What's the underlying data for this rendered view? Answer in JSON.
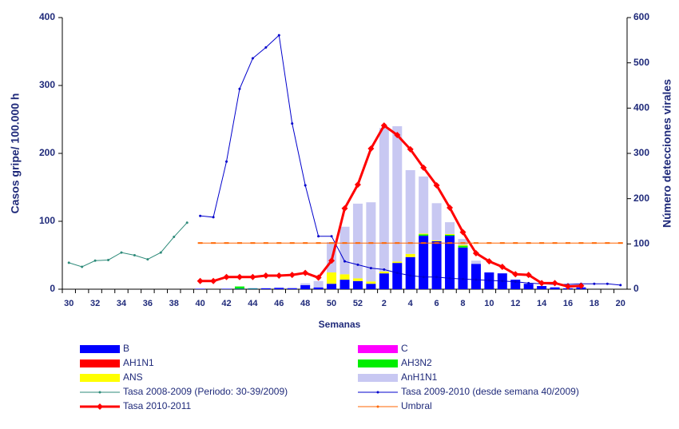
{
  "chart_data": {
    "type": "bar",
    "stacked": true,
    "x_label": "Semanas",
    "y_label": "Casos gripe/ 100.000 h",
    "y2_label": "Número detecciones virales",
    "categories": [
      "30",
      null,
      "32",
      null,
      "34",
      null,
      "36",
      null,
      "38",
      null,
      "40",
      null,
      "42",
      null,
      "44",
      null,
      "46",
      null,
      "48",
      null,
      "50",
      null,
      "52",
      null,
      "2",
      null,
      "4",
      null,
      "6",
      null,
      "8",
      null,
      "10",
      null,
      "12",
      null,
      "14",
      null,
      "16",
      null,
      "18",
      null,
      "20"
    ],
    "ylim": [
      0,
      400
    ],
    "yticks": [
      0,
      100,
      200,
      300,
      400
    ],
    "y2lim": [
      0,
      600
    ],
    "y2ticks": [
      0,
      100,
      200,
      300,
      400,
      500,
      600
    ],
    "series": [
      {
        "name": "B",
        "type": "bar",
        "axis": "y2",
        "color": "#0000ff",
        "values": [
          null,
          null,
          null,
          null,
          null,
          null,
          null,
          null,
          null,
          null,
          1,
          0,
          1,
          1,
          1,
          2,
          3,
          2,
          9,
          4,
          12,
          21,
          18,
          12,
          35,
          58,
          71,
          118,
          106,
          118,
          92,
          56,
          37,
          35,
          21,
          12,
          7,
          4,
          2,
          4,
          0,
          0,
          0
        ]
      },
      {
        "name": "C",
        "type": "bar",
        "axis": "y2",
        "color": "#ff00ff",
        "values": [
          null,
          null,
          null,
          null,
          null,
          null,
          null,
          null,
          null,
          null,
          0,
          0,
          0,
          0,
          0,
          0,
          0,
          0,
          0,
          0,
          0,
          0,
          0,
          0,
          0,
          0,
          0,
          0,
          0,
          0,
          0,
          0,
          0,
          0,
          0,
          0,
          0,
          0,
          0,
          0,
          0,
          0,
          0
        ]
      },
      {
        "name": "AH1N1",
        "type": "bar",
        "axis": "y2",
        "color": "#ff0000",
        "values": [
          null,
          null,
          null,
          null,
          null,
          null,
          null,
          null,
          null,
          null,
          0,
          0,
          0,
          0,
          0,
          0,
          0,
          0,
          0,
          0,
          0,
          0,
          0,
          0,
          0,
          0,
          0,
          0,
          0,
          0,
          0,
          0,
          0,
          0,
          0,
          0,
          0,
          0,
          0,
          0,
          0,
          0,
          0
        ]
      },
      {
        "name": "AH3N2",
        "type": "bar",
        "axis": "y2",
        "color": "#00ee00",
        "values": [
          null,
          null,
          null,
          null,
          null,
          null,
          null,
          null,
          null,
          null,
          0,
          0,
          0,
          5,
          1,
          0,
          0,
          0,
          0,
          0,
          0,
          0,
          0,
          0,
          0,
          0,
          0,
          3,
          0,
          2,
          4,
          0,
          0,
          0,
          0,
          0,
          0,
          0,
          0,
          0,
          0,
          0,
          0
        ]
      },
      {
        "name": "ANS",
        "type": "bar",
        "axis": "y2",
        "color": "#ffff00",
        "values": [
          null,
          null,
          null,
          null,
          null,
          null,
          null,
          null,
          null,
          null,
          0,
          0,
          0,
          0,
          0,
          0,
          0,
          0,
          0,
          0,
          25,
          12,
          6,
          5,
          4,
          3,
          7,
          2,
          2,
          2,
          2,
          0,
          0,
          0,
          0,
          0,
          0,
          0,
          0,
          0,
          0,
          0,
          0
        ]
      },
      {
        "name": "AnH1N1",
        "type": "bar",
        "axis": "y2",
        "color": "#c8c8f2",
        "values": [
          null,
          null,
          null,
          null,
          null,
          null,
          null,
          null,
          null,
          null,
          0,
          0,
          0,
          0,
          1,
          1,
          1,
          2,
          4,
          14,
          67,
          105,
          165,
          175,
          317,
          299,
          185,
          126,
          82,
          26,
          13,
          7,
          0,
          0,
          0,
          0,
          0,
          0,
          0,
          0,
          0,
          0,
          0
        ]
      },
      {
        "name": "Tasa 2008-2009 (Periodo: 30-39/2009)",
        "type": "line",
        "color": "#2e8b7a",
        "marker": "dot",
        "values": [
          39,
          33,
          42,
          43,
          54,
          50,
          44,
          54,
          77,
          98,
          null,
          null,
          null,
          null,
          null,
          null,
          null,
          null,
          null,
          null,
          null,
          null,
          null,
          null,
          null,
          null,
          null,
          null,
          null,
          null,
          null,
          null,
          null,
          null,
          null,
          null,
          null,
          null,
          null,
          null,
          null,
          null,
          null
        ]
      },
      {
        "name": "Tasa 2009-2010 (desde semana 40/2009)",
        "type": "line",
        "color": "#0000cc",
        "marker": "dot",
        "values": [
          null,
          null,
          null,
          null,
          null,
          null,
          null,
          null,
          null,
          null,
          108,
          106,
          188,
          295,
          340,
          356,
          374,
          244,
          153,
          78,
          78,
          41,
          36,
          31,
          29,
          24,
          20,
          18,
          18,
          16,
          15,
          14,
          13,
          12,
          11,
          9,
          8,
          7,
          7,
          8,
          8,
          8,
          6
        ]
      },
      {
        "name": "Tasa 2010-2011",
        "type": "line",
        "color": "#ff0000",
        "marker": "diamond",
        "width": 3,
        "values": [
          null,
          null,
          null,
          null,
          null,
          null,
          null,
          null,
          null,
          null,
          12,
          12,
          18,
          18,
          18,
          20,
          20,
          21,
          24,
          17,
          42,
          119,
          154,
          207,
          241,
          227,
          206,
          179,
          153,
          120,
          84,
          53,
          41,
          33,
          22,
          21,
          9,
          9,
          4,
          5,
          null,
          null,
          null
        ]
      },
      {
        "name": "Umbral",
        "type": "line",
        "color": "#ff6600",
        "marker": "dash",
        "values": [
          null,
          null,
          null,
          null,
          null,
          null,
          null,
          null,
          null,
          null,
          68,
          68,
          68,
          68,
          68,
          68,
          68,
          68,
          68,
          68,
          68,
          68,
          68,
          68,
          68,
          68,
          68,
          68,
          68,
          68,
          68,
          68,
          68,
          68,
          68,
          68,
          68,
          68,
          68,
          68,
          68,
          68,
          68
        ]
      }
    ]
  }
}
